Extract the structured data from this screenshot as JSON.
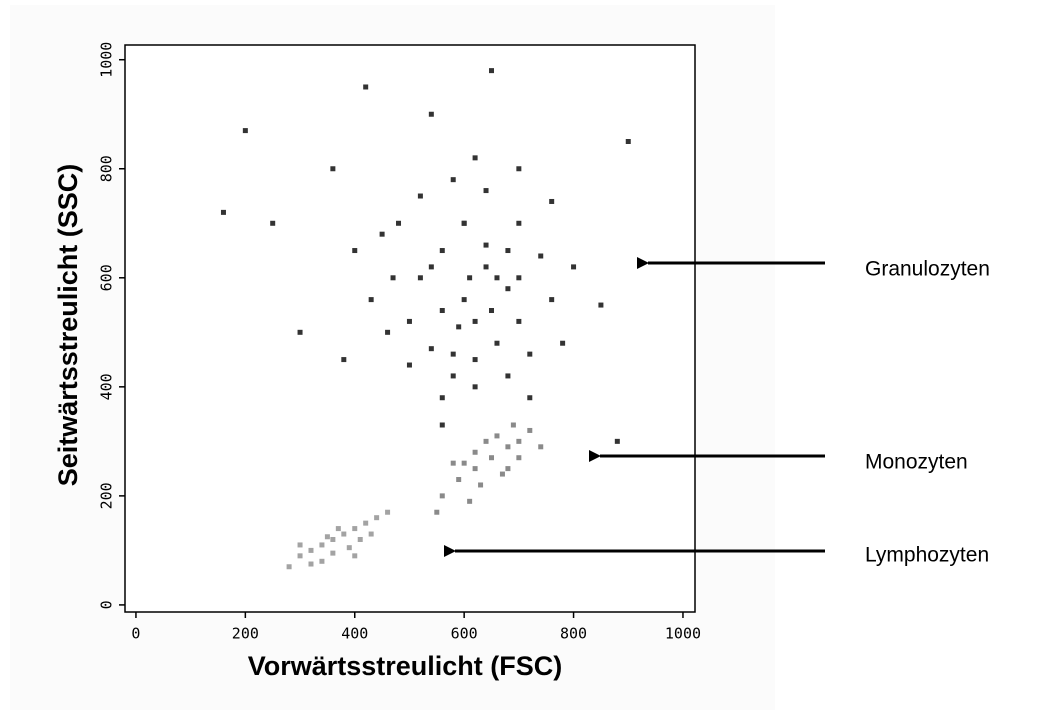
{
  "chart_data": {
    "type": "scatter",
    "xlabel": "Vorwärtsstreulicht (FSC)",
    "ylabel": "Seitwärtsstreulicht (SSC)",
    "xlim": [
      -20,
      1022
    ],
    "ylim": [
      -13,
      1027
    ],
    "xticks": [
      0,
      200,
      400,
      600,
      800,
      1000
    ],
    "yticks": [
      0,
      200,
      400,
      600,
      800,
      1000
    ],
    "series": [
      {
        "name": "Granulozyten",
        "color": "#333333",
        "x": [
          520,
          560,
          600,
          640,
          680,
          700,
          660,
          620,
          580,
          540,
          500,
          470,
          450,
          520,
          580,
          640,
          700,
          740,
          760,
          720,
          680,
          620,
          560,
          500,
          460,
          430,
          600,
          620,
          650,
          590,
          610,
          560,
          660,
          700,
          540,
          480,
          620,
          700,
          760,
          800,
          780,
          540,
          400,
          380,
          300,
          250,
          850,
          880,
          650,
          420,
          200,
          160,
          900,
          560,
          720,
          360,
          600,
          640,
          580,
          680
        ],
        "values": [
          600,
          650,
          700,
          620,
          580,
          520,
          480,
          450,
          420,
          470,
          520,
          600,
          680,
          750,
          780,
          760,
          700,
          640,
          560,
          460,
          420,
          400,
          380,
          440,
          500,
          560,
          560,
          520,
          540,
          510,
          600,
          540,
          600,
          600,
          620,
          700,
          820,
          800,
          740,
          620,
          480,
          900,
          650,
          450,
          500,
          700,
          550,
          300,
          980,
          950,
          870,
          720,
          850,
          330,
          380,
          800,
          700,
          660,
          460,
          650
        ]
      },
      {
        "name": "Monozyten",
        "color": "#8a8a8a",
        "x": [
          560,
          590,
          620,
          650,
          680,
          700,
          720,
          600,
          640,
          670,
          630,
          580,
          700,
          660,
          610,
          740,
          690,
          550,
          620,
          680
        ],
        "values": [
          200,
          230,
          250,
          270,
          290,
          300,
          320,
          260,
          300,
          240,
          220,
          260,
          270,
          310,
          190,
          290,
          330,
          170,
          280,
          250
        ]
      },
      {
        "name": "Lymphozyten",
        "color": "#a3a3a3",
        "x": [
          300,
          320,
          340,
          360,
          380,
          400,
          420,
          440,
          360,
          390,
          410,
          340,
          370,
          430,
          300,
          280,
          460,
          350,
          400,
          320
        ],
        "values": [
          90,
          100,
          110,
          120,
          130,
          140,
          150,
          160,
          95,
          105,
          120,
          80,
          140,
          130,
          110,
          70,
          170,
          125,
          90,
          75
        ]
      }
    ]
  }
}
